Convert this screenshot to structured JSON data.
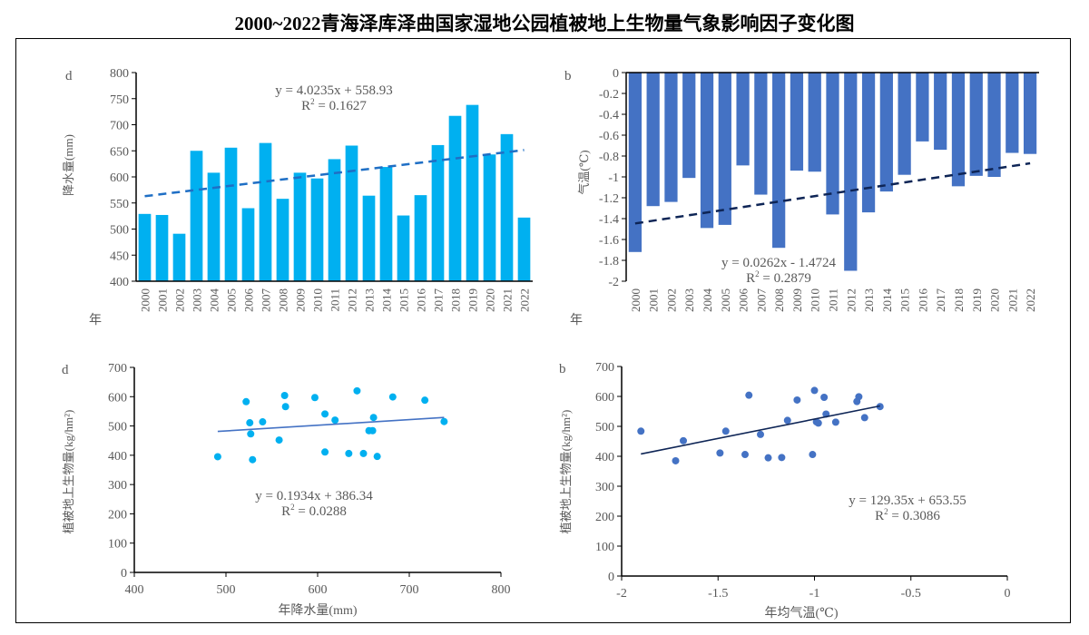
{
  "title": "2000~2022青海泽库泽曲国家湿地公园植被地上生物量气象影响因子变化图",
  "chart_data": [
    {
      "id": "precip-bar",
      "type": "bar",
      "panel_label": "d",
      "categories": [
        "2000",
        "2001",
        "2002",
        "2003",
        "2004",
        "2005",
        "2006",
        "2007",
        "2008",
        "2009",
        "2010",
        "2011",
        "2012",
        "2013",
        "2014",
        "2015",
        "2016",
        "2017",
        "2018",
        "2019",
        "2020",
        "2021",
        "2022"
      ],
      "values": [
        529,
        527,
        491,
        650,
        608,
        656,
        540,
        665,
        558,
        608,
        597,
        634,
        660,
        564,
        619,
        526,
        565,
        661,
        717,
        738,
        643,
        682,
        522
      ],
      "ylabel": "降水量(mm)",
      "xlabel": "年",
      "ylim": [
        400,
        800
      ],
      "yticks": [
        400,
        450,
        500,
        550,
        600,
        650,
        700,
        750,
        800
      ],
      "color": "#00B0F0",
      "trend": {
        "slope": 4.0235,
        "intercept": 558.93,
        "style": "dashed",
        "color": "#1F6FC5"
      },
      "equation": "y = 4.0235x + 558.93",
      "r2_label": "R",
      "r2_value": " = 0.1627"
    },
    {
      "id": "temp-bar",
      "type": "bar",
      "panel_label": "b",
      "categories": [
        "2000",
        "2001",
        "2002",
        "2003",
        "2004",
        "2005",
        "2006",
        "2007",
        "2008",
        "2009",
        "2010",
        "2011",
        "2012",
        "2013",
        "2014",
        "2015",
        "2016",
        "2017",
        "2018",
        "2019",
        "2020",
        "2021",
        "2022"
      ],
      "values": [
        -1.72,
        -1.28,
        -1.24,
        -1.01,
        -1.49,
        -1.46,
        -0.89,
        -1.17,
        -1.68,
        -0.94,
        -0.95,
        -1.36,
        -1.9,
        -1.34,
        -1.14,
        -0.98,
        -0.66,
        -0.74,
        -1.09,
        -0.99,
        -1.0,
        -0.77,
        -0.78
      ],
      "ylabel": "气温(℃)",
      "xlabel": "年",
      "ylim": [
        -2,
        0
      ],
      "yticks": [
        "-2",
        "-1.8",
        "-1.6",
        "-1.4",
        "-1.2",
        "-1",
        "-0.8",
        "-0.6",
        "-0.4",
        "-0.2",
        "0"
      ],
      "color": "#4472C4",
      "trend": {
        "slope": 0.0262,
        "intercept": -1.4724,
        "style": "dashed",
        "color": "#0E2556"
      },
      "equation": "y = 0.0262x - 1.4724",
      "r2_label": "R",
      "r2_value": " = 0.2879"
    },
    {
      "id": "precip-scatter",
      "type": "scatter",
      "panel_label": "d",
      "points": [
        [
          491,
          395
        ],
        [
          522,
          583
        ],
        [
          526,
          511
        ],
        [
          527,
          473
        ],
        [
          529,
          385
        ],
        [
          540,
          514
        ],
        [
          558,
          452
        ],
        [
          564,
          604
        ],
        [
          565,
          566
        ],
        [
          597,
          597
        ],
        [
          608,
          541
        ],
        [
          608,
          411
        ],
        [
          619,
          520
        ],
        [
          634,
          406
        ],
        [
          643,
          620
        ],
        [
          650,
          406
        ],
        [
          656,
          484
        ],
        [
          660,
          484
        ],
        [
          661,
          529
        ],
        [
          665,
          396
        ],
        [
          682,
          599
        ],
        [
          717,
          588
        ],
        [
          738,
          515
        ]
      ],
      "xlabel": "年降水量(mm)",
      "ylabel": "植被地上生物量(kg/hm²)",
      "xlim": [
        400,
        800
      ],
      "ylim": [
        0,
        700
      ],
      "xticks": [
        "400",
        "500",
        "600",
        "700",
        "800"
      ],
      "yticks": [
        "0",
        "100",
        "200",
        "300",
        "400",
        "500",
        "600",
        "700"
      ],
      "color": "#00B0F0",
      "trend": {
        "slope": 0.1934,
        "intercept": 386.34,
        "x_range": [
          491,
          738
        ],
        "color": "#4472C4"
      },
      "equation": "y = 0.1934x + 386.34",
      "r2_label": "R",
      "r2_value": " = 0.0288"
    },
    {
      "id": "temp-scatter",
      "type": "scatter",
      "panel_label": "b",
      "points": [
        [
          -1.72,
          385
        ],
        [
          -1.28,
          473
        ],
        [
          -1.24,
          395
        ],
        [
          -1.01,
          406
        ],
        [
          -1.49,
          411
        ],
        [
          -1.46,
          484
        ],
        [
          -0.89,
          514
        ],
        [
          -1.17,
          396
        ],
        [
          -1.68,
          452
        ],
        [
          -0.94,
          541
        ],
        [
          -0.95,
          597
        ],
        [
          -1.36,
          406
        ],
        [
          -1.9,
          484
        ],
        [
          -1.34,
          604
        ],
        [
          -1.14,
          520
        ],
        [
          -0.98,
          511
        ],
        [
          -0.66,
          566
        ],
        [
          -0.74,
          529
        ],
        [
          -1.09,
          588
        ],
        [
          -0.99,
          515
        ],
        [
          -1.0,
          620
        ],
        [
          -0.77,
          599
        ],
        [
          -0.78,
          583
        ]
      ],
      "xlabel": "年均气温(℃)",
      "ylabel": "植被地上生物量(kg/hm²)",
      "xlim": [
        -2,
        0
      ],
      "ylim": [
        0,
        700
      ],
      "xticks": [
        "-2",
        "-1.5",
        "-1",
        "-0.5",
        "0"
      ],
      "yticks": [
        "0",
        "100",
        "200",
        "300",
        "400",
        "500",
        "600",
        "700"
      ],
      "color": "#4472C4",
      "trend": {
        "slope": 129.35,
        "intercept": 653.55,
        "x_range": [
          -1.9,
          -0.66
        ],
        "color": "#0E2556"
      },
      "equation": "y = 129.35x + 653.55",
      "r2_label": "R",
      "r2_value": " = 0.3086"
    }
  ]
}
